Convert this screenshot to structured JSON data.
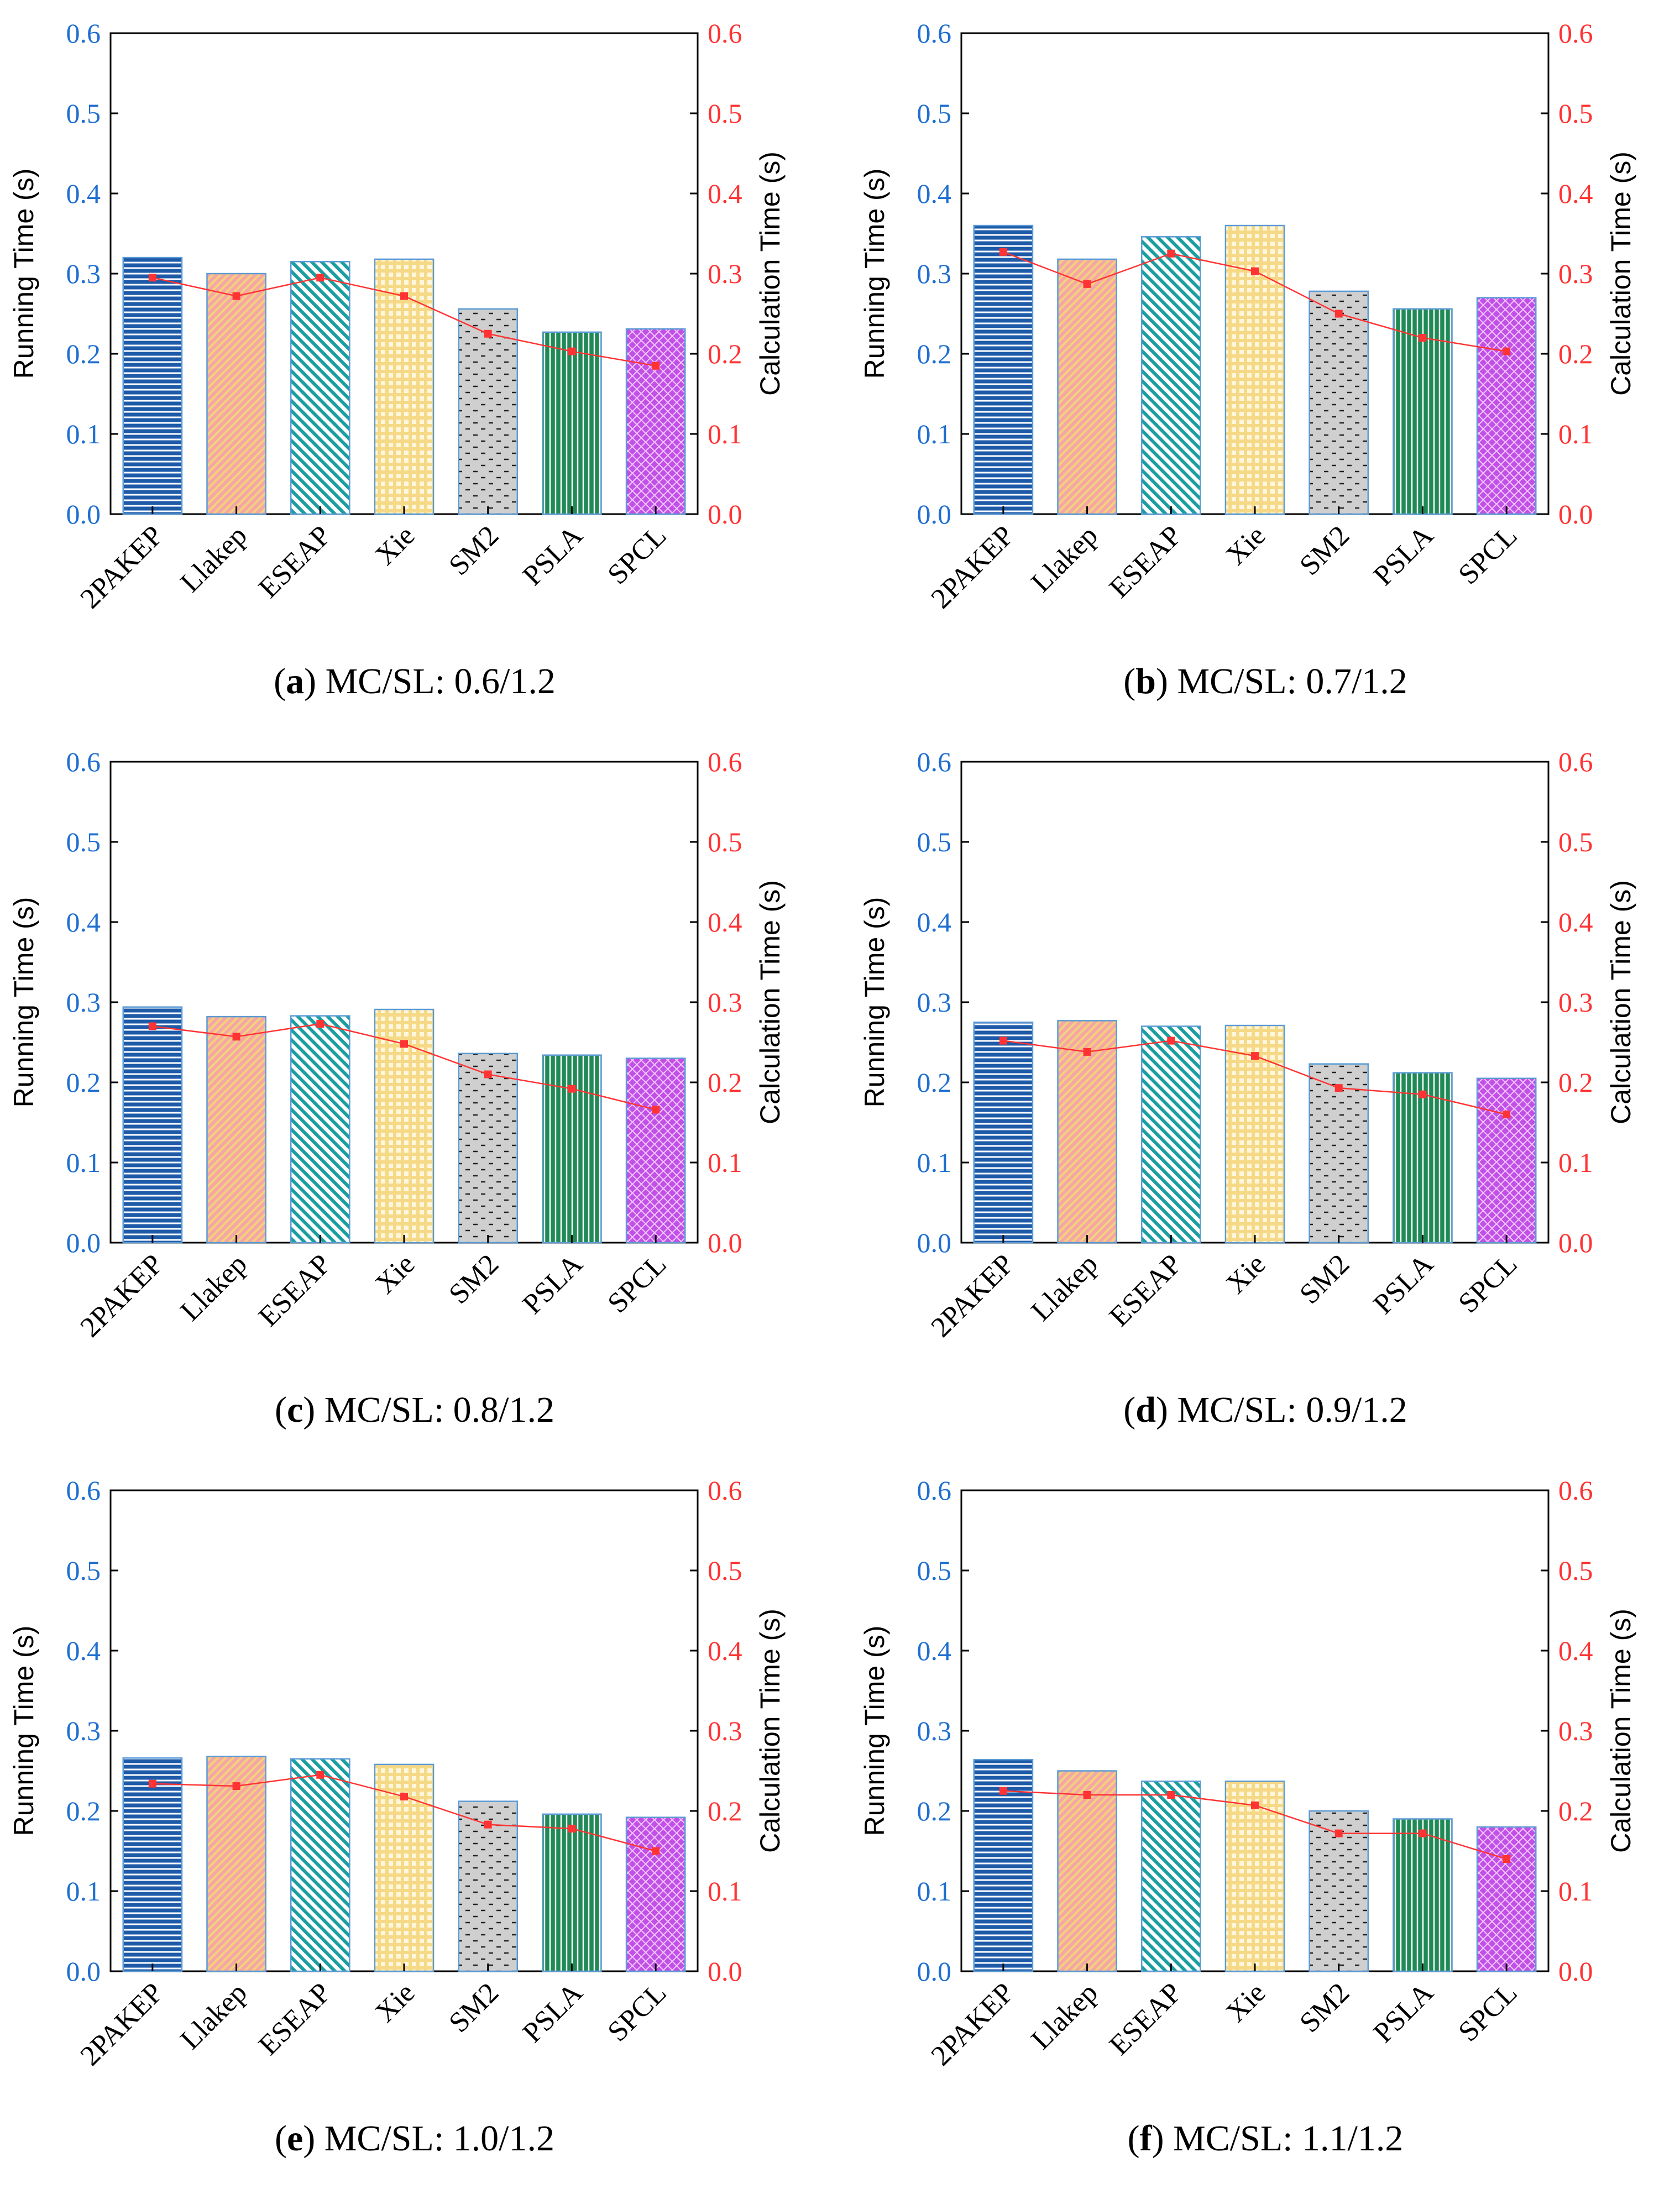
{
  "colors": {
    "left_axis": "#1f6fd1",
    "right_axis": "#ff3333",
    "bar_2PAKEP": "#1d5aa8",
    "bar_Llakep": "#f6a6a6",
    "bar_Llakep_hatch": "#f2d27a",
    "bar_ESEAP": "#1a9ea0",
    "bar_Xie": "#f6d986",
    "bar_SM2": "#cfcfcf",
    "bar_PSLA": "#1f8a55",
    "bar_SPCL": "#c050e6",
    "bar_edge": "#5b9bd5",
    "line": "#ff3333"
  },
  "chart_data": [
    {
      "type": "bar",
      "caption_label": "a",
      "caption_text": "MC/SL: 0.6/1.2",
      "categories": [
        "2PAKEP",
        "Llakep",
        "ESEAP",
        "Xie",
        "SM2",
        "PSLA",
        "SPCL"
      ],
      "series": [
        {
          "name": "Running Time (s)",
          "axis": "left",
          "type": "bar",
          "values": [
            0.32,
            0.3,
            0.315,
            0.318,
            0.256,
            0.227,
            0.231
          ]
        },
        {
          "name": "Calculation Time (s)",
          "axis": "right",
          "type": "line",
          "values": [
            0.295,
            0.272,
            0.295,
            0.272,
            0.225,
            0.203,
            0.185
          ]
        }
      ],
      "ylabel": "Running Time (s)",
      "y2label": "Calculation Time (s)",
      "ylim": [
        0,
        0.6
      ],
      "y2lim": [
        0,
        0.6
      ],
      "yticks": [
        "0.0",
        "0.1",
        "0.2",
        "0.3",
        "0.4",
        "0.5",
        "0.6"
      ]
    },
    {
      "type": "bar",
      "caption_label": "b",
      "caption_text": "MC/SL: 0.7/1.2",
      "categories": [
        "2PAKEP",
        "Llakep",
        "ESEAP",
        "Xie",
        "SM2",
        "PSLA",
        "SPCL"
      ],
      "series": [
        {
          "name": "Running Time (s)",
          "axis": "left",
          "type": "bar",
          "values": [
            0.36,
            0.318,
            0.346,
            0.36,
            0.278,
            0.256,
            0.27
          ]
        },
        {
          "name": "Calculation Time (s)",
          "axis": "right",
          "type": "line",
          "values": [
            0.327,
            0.287,
            0.325,
            0.303,
            0.25,
            0.22,
            0.203
          ]
        }
      ],
      "ylabel": "Running Time (s)",
      "y2label": "Calculation Time (s)",
      "ylim": [
        0,
        0.6
      ],
      "y2lim": [
        0,
        0.6
      ],
      "yticks": [
        "0.0",
        "0.1",
        "0.2",
        "0.3",
        "0.4",
        "0.5",
        "0.6"
      ]
    },
    {
      "type": "bar",
      "caption_label": "c",
      "caption_text": "MC/SL: 0.8/1.2",
      "categories": [
        "2PAKEP",
        "Llakep",
        "ESEAP",
        "Xie",
        "SM2",
        "PSLA",
        "SPCL"
      ],
      "series": [
        {
          "name": "Running Time (s)",
          "axis": "left",
          "type": "bar",
          "values": [
            0.294,
            0.282,
            0.283,
            0.291,
            0.236,
            0.234,
            0.23
          ]
        },
        {
          "name": "Calculation Time (s)",
          "axis": "right",
          "type": "line",
          "values": [
            0.27,
            0.257,
            0.273,
            0.248,
            0.21,
            0.192,
            0.166
          ]
        }
      ],
      "ylabel": "Running Time (s)",
      "y2label": "Calculation Time (s)",
      "ylim": [
        0,
        0.6
      ],
      "y2lim": [
        0,
        0.6
      ],
      "yticks": [
        "0.0",
        "0.1",
        "0.2",
        "0.3",
        "0.4",
        "0.5",
        "0.6"
      ]
    },
    {
      "type": "bar",
      "caption_label": "d",
      "caption_text": "MC/SL: 0.9/1.2",
      "categories": [
        "2PAKEP",
        "Llakep",
        "ESEAP",
        "Xie",
        "SM2",
        "PSLA",
        "SPCL"
      ],
      "series": [
        {
          "name": "Running Time (s)",
          "axis": "left",
          "type": "bar",
          "values": [
            0.275,
            0.277,
            0.27,
            0.271,
            0.223,
            0.212,
            0.205
          ]
        },
        {
          "name": "Calculation Time (s)",
          "axis": "right",
          "type": "line",
          "values": [
            0.252,
            0.238,
            0.252,
            0.233,
            0.193,
            0.185,
            0.16
          ]
        }
      ],
      "ylabel": "Running Time (s)",
      "y2label": "Calculation Time (s)",
      "ylim": [
        0,
        0.6
      ],
      "y2lim": [
        0,
        0.6
      ],
      "yticks": [
        "0.0",
        "0.1",
        "0.2",
        "0.3",
        "0.4",
        "0.5",
        "0.6"
      ]
    },
    {
      "type": "bar",
      "caption_label": "e",
      "caption_text": "MC/SL: 1.0/1.2",
      "categories": [
        "2PAKEP",
        "Llakep",
        "ESEAP",
        "Xie",
        "SM2",
        "PSLA",
        "SPCL"
      ],
      "series": [
        {
          "name": "Running Time (s)",
          "axis": "left",
          "type": "bar",
          "values": [
            0.266,
            0.268,
            0.265,
            0.258,
            0.212,
            0.196,
            0.192
          ]
        },
        {
          "name": "Calculation Time (s)",
          "axis": "right",
          "type": "line",
          "values": [
            0.234,
            0.231,
            0.245,
            0.218,
            0.183,
            0.178,
            0.15
          ]
        }
      ],
      "ylabel": "Running Time (s)",
      "y2label": "Calculation Time (s)",
      "ylim": [
        0,
        0.6
      ],
      "y2lim": [
        0,
        0.6
      ],
      "yticks": [
        "0.0",
        "0.1",
        "0.2",
        "0.3",
        "0.4",
        "0.5",
        "0.6"
      ]
    },
    {
      "type": "bar",
      "caption_label": "f",
      "caption_text": "MC/SL: 1.1/1.2",
      "categories": [
        "2PAKEP",
        "Llakep",
        "ESEAP",
        "Xie",
        "SM2",
        "PSLA",
        "SPCL"
      ],
      "series": [
        {
          "name": "Running Time (s)",
          "axis": "left",
          "type": "bar",
          "values": [
            0.264,
            0.25,
            0.237,
            0.237,
            0.2,
            0.19,
            0.18
          ]
        },
        {
          "name": "Calculation Time (s)",
          "axis": "right",
          "type": "line",
          "values": [
            0.225,
            0.22,
            0.22,
            0.207,
            0.172,
            0.172,
            0.14
          ]
        }
      ],
      "ylabel": "Running Time (s)",
      "y2label": "Calculation Time (s)",
      "ylim": [
        0,
        0.6
      ],
      "y2lim": [
        0,
        0.6
      ],
      "yticks": [
        "0.0",
        "0.1",
        "0.2",
        "0.3",
        "0.4",
        "0.5",
        "0.6"
      ]
    }
  ]
}
